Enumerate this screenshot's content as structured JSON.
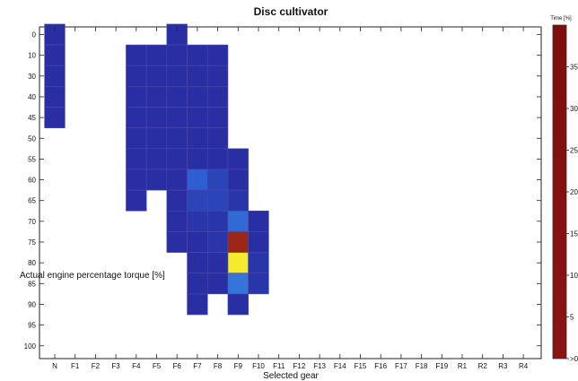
{
  "chart_data": {
    "type": "heatmap",
    "title": "Disc cultivator",
    "xlabel": "Selected gear",
    "ylabel": "Actual engine percentage torque [%]",
    "x_categories": [
      "N",
      "F1",
      "F2",
      "F3",
      "F4",
      "F5",
      "F6",
      "F7",
      "F8",
      "F9",
      "F10",
      "F11",
      "F12",
      "F13",
      "F14",
      "F15",
      "F16",
      "F17",
      "F18",
      "F19",
      "R1",
      "R2",
      "R3",
      "R4"
    ],
    "y_categories": [
      "0",
      "10",
      "30",
      "40",
      "45",
      "50",
      "55",
      "60",
      "65",
      "70",
      "75",
      "80",
      "85",
      "90",
      "95",
      "100"
    ],
    "colorbar": {
      "title": "Time [%]",
      "range": [
        0,
        40
      ],
      "ticks": [
        "35",
        "30",
        "25",
        "20",
        "15",
        "10",
        "5",
        ">0"
      ]
    },
    "cells": [
      {
        "x": "N",
        "y": "0",
        "v": 0.5
      },
      {
        "x": "N",
        "y": "10",
        "v": 0.5
      },
      {
        "x": "N",
        "y": "30",
        "v": 0.5
      },
      {
        "x": "N",
        "y": "40",
        "v": 0.5
      },
      {
        "x": "N",
        "y": "45",
        "v": 0.5
      },
      {
        "x": "F4",
        "y": "10",
        "v": 0.5
      },
      {
        "x": "F4",
        "y": "30",
        "v": 0.5
      },
      {
        "x": "F4",
        "y": "40",
        "v": 0.5
      },
      {
        "x": "F4",
        "y": "45",
        "v": 0.5
      },
      {
        "x": "F4",
        "y": "50",
        "v": 0.5
      },
      {
        "x": "F4",
        "y": "55",
        "v": 0.5
      },
      {
        "x": "F4",
        "y": "60",
        "v": 0.5
      },
      {
        "x": "F4",
        "y": "65",
        "v": 0.5
      },
      {
        "x": "F5",
        "y": "10",
        "v": 0.5
      },
      {
        "x": "F5",
        "y": "30",
        "v": 0.5
      },
      {
        "x": "F5",
        "y": "40",
        "v": 0.5
      },
      {
        "x": "F5",
        "y": "45",
        "v": 0.5
      },
      {
        "x": "F5",
        "y": "50",
        "v": 0.5
      },
      {
        "x": "F5",
        "y": "55",
        "v": 0.5
      },
      {
        "x": "F5",
        "y": "60",
        "v": 0.5
      },
      {
        "x": "F6",
        "y": "0",
        "v": 0.5
      },
      {
        "x": "F6",
        "y": "10",
        "v": 0.5
      },
      {
        "x": "F6",
        "y": "30",
        "v": 0.5
      },
      {
        "x": "F6",
        "y": "40",
        "v": 0.5
      },
      {
        "x": "F6",
        "y": "45",
        "v": 0.5
      },
      {
        "x": "F6",
        "y": "50",
        "v": 0.5
      },
      {
        "x": "F6",
        "y": "55",
        "v": 0.5
      },
      {
        "x": "F6",
        "y": "60",
        "v": 0.5
      },
      {
        "x": "F6",
        "y": "65",
        "v": 0.5
      },
      {
        "x": "F6",
        "y": "70",
        "v": 0.5
      },
      {
        "x": "F6",
        "y": "75",
        "v": 0.5
      },
      {
        "x": "F7",
        "y": "10",
        "v": 0.5
      },
      {
        "x": "F7",
        "y": "30",
        "v": 0.5
      },
      {
        "x": "F7",
        "y": "40",
        "v": 0.5
      },
      {
        "x": "F7",
        "y": "45",
        "v": 0.5
      },
      {
        "x": "F7",
        "y": "50",
        "v": 0.5
      },
      {
        "x": "F7",
        "y": "55",
        "v": 0.5
      },
      {
        "x": "F7",
        "y": "60",
        "v": 4
      },
      {
        "x": "F7",
        "y": "65",
        "v": 2
      },
      {
        "x": "F7",
        "y": "70",
        "v": 1
      },
      {
        "x": "F7",
        "y": "75",
        "v": 0.5
      },
      {
        "x": "F7",
        "y": "80",
        "v": 0.5
      },
      {
        "x": "F7",
        "y": "85",
        "v": 0.5
      },
      {
        "x": "F7",
        "y": "90",
        "v": 0.5
      },
      {
        "x": "F8",
        "y": "10",
        "v": 0.5
      },
      {
        "x": "F8",
        "y": "30",
        "v": 0.5
      },
      {
        "x": "F8",
        "y": "40",
        "v": 0.5
      },
      {
        "x": "F8",
        "y": "45",
        "v": 0.5
      },
      {
        "x": "F8",
        "y": "50",
        "v": 0.5
      },
      {
        "x": "F8",
        "y": "55",
        "v": 0.5
      },
      {
        "x": "F8",
        "y": "60",
        "v": 2
      },
      {
        "x": "F8",
        "y": "65",
        "v": 2
      },
      {
        "x": "F8",
        "y": "70",
        "v": 1
      },
      {
        "x": "F8",
        "y": "75",
        "v": 1
      },
      {
        "x": "F8",
        "y": "80",
        "v": 0.5
      },
      {
        "x": "F8",
        "y": "85",
        "v": 0.5
      },
      {
        "x": "F9",
        "y": "55",
        "v": 0.5
      },
      {
        "x": "F9",
        "y": "60",
        "v": 0.5
      },
      {
        "x": "F9",
        "y": "65",
        "v": 1
      },
      {
        "x": "F9",
        "y": "70",
        "v": 5
      },
      {
        "x": "F9",
        "y": "75",
        "v": 38
      },
      {
        "x": "F9",
        "y": "80",
        "v": 24
      },
      {
        "x": "F9",
        "y": "85",
        "v": 6
      },
      {
        "x": "F9",
        "y": "90",
        "v": 0.5
      },
      {
        "x": "F10",
        "y": "70",
        "v": 0.5
      },
      {
        "x": "F10",
        "y": "75",
        "v": 0.5
      },
      {
        "x": "F10",
        "y": "80",
        "v": 1
      },
      {
        "x": "F10",
        "y": "85",
        "v": 1
      }
    ]
  }
}
